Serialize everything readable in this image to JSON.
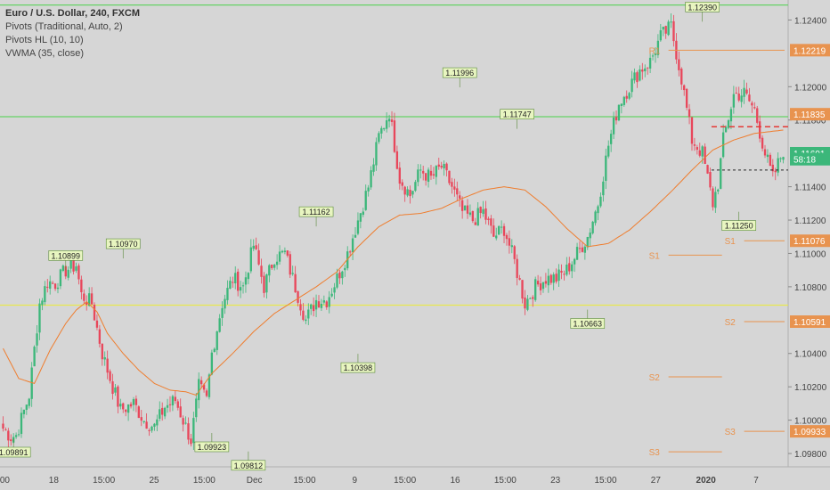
{
  "legend": {
    "title": "Euro / U.S. Dollar, 240, FXCM",
    "indicators": [
      "Pivots (Traditional, Auto, 2)",
      "Pivots HL (10, 10)",
      "VWMA (35, close)"
    ]
  },
  "colors": {
    "background": "#d6d6d6",
    "up": "#3cb77a",
    "down": "#e8475b",
    "vwma": "#ef7d2e",
    "pivot": "#e8934f",
    "green_line": "#66d266",
    "yellow_line": "#e8e84f",
    "label_bg": "#e8f5c0",
    "tick_text": "#444444"
  },
  "chart_data": {
    "type": "candlestick",
    "symbol": "EURUSD",
    "interval": "240",
    "ylim": [
      1.0972,
      1.1252
    ],
    "price_axis_ticks": [
      "1.12400",
      "1.12000",
      "1.11800",
      "1.11400",
      "1.11200",
      "1.11000",
      "1.10800",
      "1.10400",
      "1.10200",
      "1.10000",
      "1.09800"
    ],
    "time_axis_labels": [
      ":00",
      "18",
      "15:00",
      "25",
      "15:00",
      "Dec",
      "15:00",
      "9",
      "15:00",
      "16",
      "15:00",
      "23",
      "15:00",
      "27",
      "2020",
      "7"
    ],
    "close_anchors": [
      [
        0,
        1.0995
      ],
      [
        3,
        1.099
      ],
      [
        5,
        1.0991
      ],
      [
        10,
        1.1015
      ],
      [
        14,
        1.107
      ],
      [
        17,
        1.1083
      ],
      [
        20,
        1.1082
      ],
      [
        24,
        1.109
      ],
      [
        28,
        1.1093
      ],
      [
        30,
        1.1075
      ],
      [
        34,
        1.107
      ],
      [
        38,
        1.104
      ],
      [
        42,
        1.102
      ],
      [
        45,
        1.1006
      ],
      [
        50,
        1.101
      ],
      [
        54,
        1.1
      ],
      [
        58,
        1.0996
      ],
      [
        62,
        1.1008
      ],
      [
        66,
        1.1012
      ],
      [
        70,
        1.0996
      ],
      [
        72,
        1.0988
      ],
      [
        75,
        1.102
      ],
      [
        78,
        1.1012
      ],
      [
        80,
        1.104
      ],
      [
        84,
        1.107
      ],
      [
        88,
        1.1085
      ],
      [
        92,
        1.108
      ],
      [
        96,
        1.1105
      ],
      [
        100,
        1.108
      ],
      [
        104,
        1.1098
      ],
      [
        108,
        1.11
      ],
      [
        112,
        1.108
      ],
      [
        116,
        1.106
      ],
      [
        120,
        1.1072
      ],
      [
        124,
        1.1072
      ],
      [
        128,
        1.1085
      ],
      [
        132,
        1.11
      ],
      [
        136,
        1.112
      ],
      [
        140,
        1.114
      ],
      [
        144,
        1.117
      ],
      [
        148,
        1.1185
      ],
      [
        152,
        1.1145
      ],
      [
        156,
        1.1135
      ],
      [
        160,
        1.115
      ],
      [
        164,
        1.1145
      ],
      [
        168,
        1.1152
      ],
      [
        172,
        1.114
      ],
      [
        176,
        1.1125
      ],
      [
        180,
        1.112
      ],
      [
        184,
        1.1125
      ],
      [
        188,
        1.111
      ],
      [
        192,
        1.1115
      ],
      [
        196,
        1.1095
      ],
      [
        200,
        1.107
      ],
      [
        204,
        1.108
      ],
      [
        208,
        1.1085
      ],
      [
        212,
        1.1085
      ],
      [
        216,
        1.109
      ],
      [
        220,
        1.11
      ],
      [
        224,
        1.111
      ],
      [
        228,
        1.113
      ],
      [
        232,
        1.1165
      ],
      [
        236,
        1.119
      ],
      [
        240,
        1.12
      ],
      [
        244,
        1.121
      ],
      [
        248,
        1.1215
      ],
      [
        252,
        1.123
      ],
      [
        256,
        1.1236
      ],
      [
        260,
        1.1205
      ],
      [
        264,
        1.1168
      ],
      [
        268,
        1.116
      ],
      [
        272,
        1.113
      ],
      [
        274,
        1.1142
      ],
      [
        276,
        1.1168
      ],
      [
        280,
        1.1195
      ],
      [
        284,
        1.1196
      ],
      [
        288,
        1.1186
      ],
      [
        292,
        1.116
      ],
      [
        295,
        1.1145
      ],
      [
        299,
        1.1162
      ]
    ],
    "vwma_anchors": [
      [
        0,
        1.1043
      ],
      [
        6,
        1.1025
      ],
      [
        12,
        1.1022
      ],
      [
        18,
        1.1042
      ],
      [
        24,
        1.1058
      ],
      [
        28,
        1.1066
      ],
      [
        32,
        1.1071
      ],
      [
        36,
        1.1065
      ],
      [
        40,
        1.1052
      ],
      [
        46,
        1.104
      ],
      [
        52,
        1.103
      ],
      [
        58,
        1.1022
      ],
      [
        64,
        1.1018
      ],
      [
        70,
        1.1017
      ],
      [
        74,
        1.1015
      ],
      [
        80,
        1.1028
      ],
      [
        88,
        1.104
      ],
      [
        96,
        1.1053
      ],
      [
        104,
        1.1064
      ],
      [
        112,
        1.1072
      ],
      [
        120,
        1.108
      ],
      [
        128,
        1.1089
      ],
      [
        136,
        1.1104
      ],
      [
        144,
        1.1116
      ],
      [
        152,
        1.1123
      ],
      [
        160,
        1.1124
      ],
      [
        168,
        1.1127
      ],
      [
        176,
        1.1133
      ],
      [
        184,
        1.1138
      ],
      [
        192,
        1.114
      ],
      [
        200,
        1.1138
      ],
      [
        208,
        1.1128
      ],
      [
        216,
        1.1115
      ],
      [
        224,
        1.1104
      ],
      [
        232,
        1.1106
      ],
      [
        240,
        1.1114
      ],
      [
        248,
        1.1125
      ],
      [
        256,
        1.1137
      ],
      [
        264,
        1.115
      ],
      [
        272,
        1.1162
      ],
      [
        280,
        1.1168
      ],
      [
        288,
        1.1172
      ],
      [
        299,
        1.1174
      ]
    ],
    "horizontal_lines": [
      {
        "price": 1.1249,
        "color": "#66d266"
      },
      {
        "price": 1.1182,
        "color": "#66d266"
      },
      {
        "price": 1.1069,
        "color": "#e8e84f"
      }
    ],
    "pivot_levels": [
      {
        "label": "R1",
        "price": 1.12219,
        "from": 248,
        "to": 299
      },
      {
        "label": "S1",
        "price": 1.11076,
        "from": 277,
        "to": 299
      },
      {
        "label": "S1",
        "price": 1.1099,
        "from": 248,
        "to": 275
      },
      {
        "label": "S2",
        "price": 1.10591,
        "from": 277,
        "to": 299
      },
      {
        "label": "S2",
        "price": 1.1026,
        "from": 248,
        "to": 275
      },
      {
        "label": "S3",
        "price": 1.09933,
        "from": 277,
        "to": 299
      },
      {
        "label": "S3",
        "price": 1.0981,
        "from": 248,
        "to": 275
      }
    ],
    "price_labels": [
      {
        "text": "1.12219",
        "price": 1.12219,
        "kind": "pivot"
      },
      {
        "text": "1.11835",
        "price": 1.11835,
        "kind": "pivot"
      },
      {
        "text": "1.11601",
        "price": 1.11601,
        "kind": "last"
      },
      {
        "text": "58:18",
        "price": 1.11565,
        "kind": "timer"
      },
      {
        "text": "1.11076",
        "price": 1.11076,
        "kind": "pivot"
      },
      {
        "text": "1.10591",
        "price": 1.10591,
        "kind": "pivot"
      },
      {
        "text": "1.09933",
        "price": 1.09933,
        "kind": "pivot"
      }
    ],
    "pivot_hl_labels": [
      {
        "text": "1.09891",
        "price": 1.09891,
        "bar": 4,
        "pos": "below"
      },
      {
        "text": "1.10899",
        "price": 1.10899,
        "bar": 24,
        "pos": "above"
      },
      {
        "text": "1.10970",
        "price": 1.1097,
        "bar": 46,
        "pos": "above"
      },
      {
        "text": "1.09923",
        "price": 1.09923,
        "bar": 80,
        "pos": "below"
      },
      {
        "text": "1.09812",
        "price": 1.09812,
        "bar": 94,
        "pos": "below"
      },
      {
        "text": "1.11162",
        "price": 1.11162,
        "bar": 120,
        "pos": "above"
      },
      {
        "text": "1.10398",
        "price": 1.10398,
        "bar": 136,
        "pos": "below"
      },
      {
        "text": "1.11996",
        "price": 1.11996,
        "bar": 175,
        "pos": "above"
      },
      {
        "text": "1.11747",
        "price": 1.11747,
        "bar": 197,
        "pos": "above"
      },
      {
        "text": "1.10663",
        "price": 1.10663,
        "bar": 224,
        "pos": "below"
      },
      {
        "text": "1.12390",
        "price": 1.1239,
        "bar": 268,
        "pos": "above"
      },
      {
        "text": "1.11250",
        "price": 1.1125,
        "bar": 282,
        "pos": "below"
      }
    ],
    "red_dashed_level": 1.1176,
    "black_dashed_level": 1.115
  }
}
